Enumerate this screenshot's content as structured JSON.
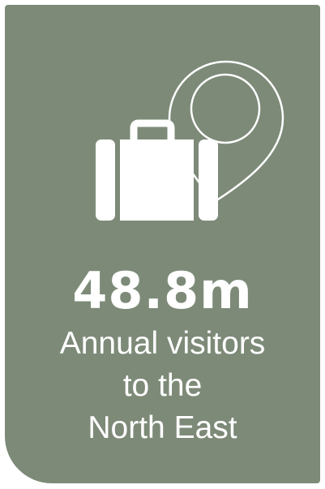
{
  "stat": {
    "value": "48.8m",
    "caption_lines": [
      "Annual visitors",
      "to the",
      "North East"
    ]
  },
  "icons": {
    "primary": "suitcase-icon",
    "secondary": "map-pin-icon"
  },
  "colors": {
    "card_background": "#7d8a78",
    "foreground": "#ffffff"
  }
}
